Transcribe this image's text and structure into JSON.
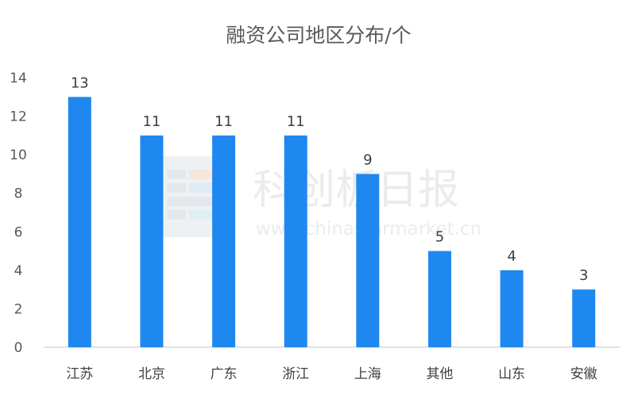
{
  "chart_data": {
    "type": "bar",
    "title": "融资公司地区分布/个",
    "categories": [
      "江苏",
      "北京",
      "广东",
      "浙江",
      "上海",
      "其他",
      "山东",
      "安徽"
    ],
    "values": [
      13,
      11,
      11,
      11,
      9,
      5,
      4,
      3
    ],
    "ylim": [
      0,
      14
    ],
    "y_ticks": [
      0,
      2,
      4,
      6,
      8,
      10,
      12,
      14
    ],
    "xlabel": "",
    "ylabel": "",
    "grid": false,
    "data_labels": true,
    "bar_color": "#1e88f0"
  },
  "watermark": {
    "logo_text": "科创板日报",
    "url": "www.chinastarmarket.cn"
  }
}
